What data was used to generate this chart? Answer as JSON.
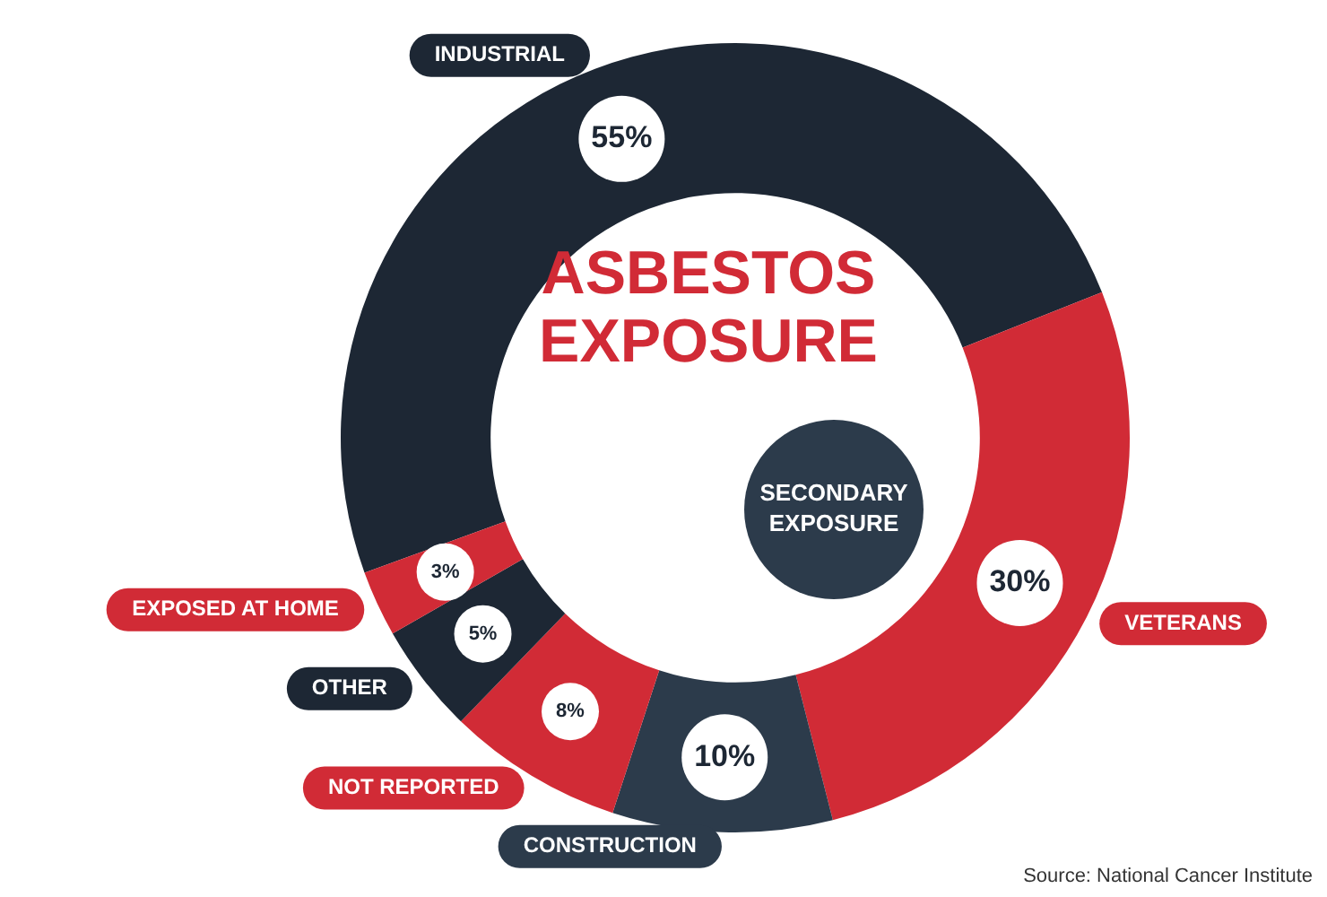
{
  "chart_data": {
    "type": "donut",
    "title": "ASBESTOS EXPOSURE",
    "categories": [
      "INDUSTRIAL",
      "VETERANS",
      "CONSTRUCTION",
      "NOT REPORTED",
      "OTHER",
      "EXPOSED AT HOME"
    ],
    "values": [
      55,
      30,
      10,
      8,
      5,
      3
    ],
    "colors": [
      "#1d2734",
      "#d12b36",
      "#2c3b4b",
      "#d12b36",
      "#1d2734",
      "#d12b36"
    ],
    "value_labels": [
      "55%",
      "30%",
      "10%",
      "8%",
      "5%",
      "3%"
    ],
    "annotations": [
      "SECONDARY EXPOSURE",
      "Source: National Cancer Institute"
    ],
    "legend": false
  }
}
